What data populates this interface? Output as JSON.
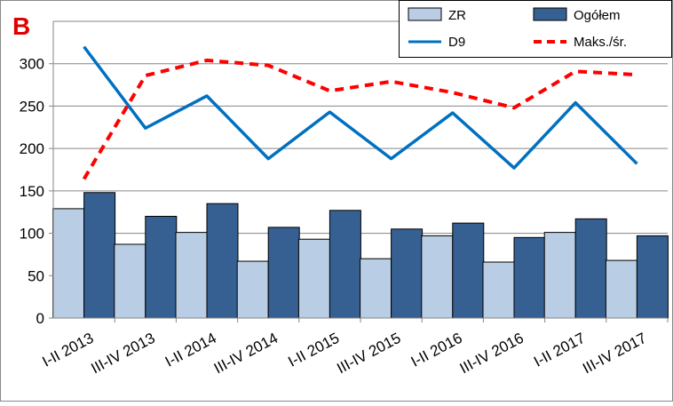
{
  "panel_label": "B",
  "colors": {
    "zr": "#b9cde5",
    "ogolem": "#366092",
    "d9": "#0070c0",
    "maks": "#ff0000",
    "panel_label": "#e00000"
  },
  "chart_data": {
    "type": "bar",
    "categories": [
      "I-II 2013",
      "III-IV 2013",
      "I-II 2014",
      "III-IV 2014",
      "I-II 2015",
      "III-IV 2015",
      "I-II 2016",
      "III-IV 2016",
      "I-II 2017",
      "III-IV 2017"
    ],
    "series": [
      {
        "name": "ZR",
        "kind": "bar",
        "values": [
          129,
          87,
          101,
          67,
          93,
          70,
          97,
          66,
          101,
          68
        ]
      },
      {
        "name": "Ogółem",
        "kind": "bar",
        "values": [
          148,
          120,
          135,
          107,
          127,
          105,
          112,
          95,
          117,
          97
        ]
      },
      {
        "name": "D9",
        "kind": "line",
        "values": [
          320,
          224,
          262,
          188,
          243,
          188,
          242,
          177,
          254,
          182
        ]
      },
      {
        "name": "Maks./śr.",
        "kind": "dashed-line",
        "values": [
          164,
          286,
          304,
          298,
          268,
          279,
          266,
          248,
          291,
          287
        ]
      }
    ],
    "ylim": [
      0,
      350
    ],
    "yticks": [
      "0",
      "50",
      "100",
      "150",
      "200",
      "250",
      "300"
    ],
    "grid": true,
    "legend": "top-right"
  }
}
